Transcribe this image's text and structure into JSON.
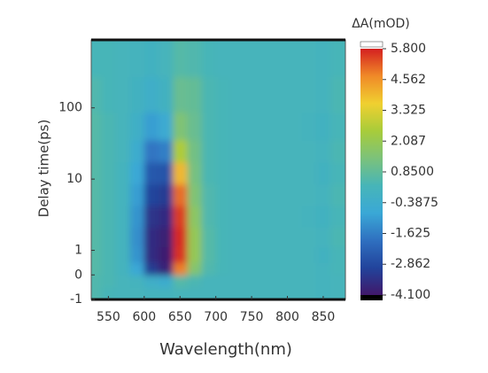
{
  "chart_data": {
    "type": "heatmap",
    "xlabel": "Wavelength(nm)",
    "ylabel": "Delay time(ps)",
    "colorbar_title": "ΔA(mOD)",
    "x": [
      530,
      550,
      570,
      590,
      610,
      630,
      650,
      670,
      690,
      710,
      730,
      750,
      770,
      790,
      810,
      830,
      850,
      870
    ],
    "y": [
      -0.75,
      -0.25,
      0.25,
      0.75,
      1.5,
      3,
      6,
      12,
      25,
      50,
      150,
      500
    ],
    "z": [
      [
        0.5,
        0.3,
        0.2,
        0.2,
        0.1,
        0.1,
        0.2,
        0.2,
        0.2,
        0.2,
        0.2,
        0.2,
        0.2,
        0.2,
        0.2,
        0.2,
        0.1,
        0.2
      ],
      [
        0.5,
        0.4,
        0.2,
        0.1,
        -0.3,
        -0.5,
        0.6,
        0.4,
        0.2,
        0.2,
        0.2,
        0.2,
        0.2,
        0.2,
        0.2,
        0.2,
        0.1,
        0.2
      ],
      [
        0.6,
        0.4,
        0.1,
        -0.8,
        -3.2,
        -3.8,
        4.8,
        1.6,
        0.5,
        0.3,
        0.2,
        0.2,
        0.2,
        0.2,
        0.2,
        0.2,
        0.1,
        0.3
      ],
      [
        0.6,
        0.4,
        0.1,
        -1.2,
        -3.6,
        -4.0,
        5.6,
        2.0,
        0.6,
        0.3,
        0.2,
        0.2,
        0.2,
        0.2,
        0.2,
        0.2,
        0.0,
        0.3
      ],
      [
        0.6,
        0.4,
        0.1,
        -1.3,
        -3.6,
        -3.9,
        5.7,
        2.0,
        0.6,
        0.3,
        0.2,
        0.2,
        0.2,
        0.2,
        0.2,
        0.2,
        0.1,
        0.4
      ],
      [
        0.6,
        0.4,
        0.1,
        -1.2,
        -3.4,
        -3.6,
        5.5,
        1.8,
        0.5,
        0.3,
        0.2,
        0.2,
        0.2,
        0.2,
        0.2,
        0.1,
        0.0,
        0.3
      ],
      [
        0.6,
        0.4,
        0.1,
        -1.0,
        -3.0,
        -3.2,
        5.0,
        1.5,
        0.5,
        0.3,
        0.2,
        0.2,
        0.2,
        0.2,
        0.2,
        0.2,
        0.1,
        0.4
      ],
      [
        0.6,
        0.4,
        0.1,
        -0.8,
        -2.5,
        -2.6,
        4.0,
        1.3,
        0.4,
        0.3,
        0.2,
        0.2,
        0.2,
        0.2,
        0.2,
        0.2,
        0.0,
        0.3
      ],
      [
        0.6,
        0.4,
        0.2,
        -0.5,
        -1.8,
        -1.6,
        2.6,
        1.2,
        0.4,
        0.3,
        0.2,
        0.2,
        0.2,
        0.2,
        0.2,
        0.2,
        0.1,
        0.4
      ],
      [
        0.6,
        0.4,
        0.2,
        -0.2,
        -1.0,
        -0.6,
        1.5,
        1.0,
        0.4,
        0.3,
        0.2,
        0.2,
        0.2,
        0.2,
        0.2,
        0.1,
        0.0,
        0.3
      ],
      [
        0.5,
        0.3,
        0.2,
        0.0,
        -0.3,
        0.0,
        1.0,
        0.9,
        0.4,
        0.3,
        0.2,
        0.2,
        0.2,
        0.2,
        0.2,
        0.2,
        0.1,
        0.4
      ],
      [
        0.3,
        0.3,
        0.2,
        0.1,
        0.0,
        0.2,
        0.6,
        0.5,
        0.3,
        0.2,
        0.2,
        0.2,
        0.2,
        0.2,
        0.2,
        0.2,
        0.1,
        0.3
      ]
    ],
    "xlim": [
      526,
      881
    ],
    "xticks": [
      550,
      600,
      650,
      700,
      750,
      800,
      850
    ],
    "yscale": "symlog",
    "linthresh": 1,
    "ylim": [
      -1,
      900
    ],
    "yticks": [
      -1,
      0,
      1,
      10,
      100
    ],
    "clim": [
      -4.1,
      5.8
    ],
    "colormap": [
      "#40186a",
      "#22449c",
      "#2f70c0",
      "#3aa8d6",
      "#47b5b8",
      "#7cc27a",
      "#a8cc3a",
      "#f0d030",
      "#f08a28",
      "#d42020"
    ],
    "cticks": [
      {
        "value": 5.8,
        "label": "5.800"
      },
      {
        "value": 4.562,
        "label": "4.562"
      },
      {
        "value": 3.325,
        "label": "3.325"
      },
      {
        "value": 2.087,
        "label": "2.087"
      },
      {
        "value": 0.85,
        "label": "0.8500"
      },
      {
        "value": -0.3875,
        "label": "-0.3875"
      },
      {
        "value": -1.625,
        "label": "-1.625"
      },
      {
        "value": -2.862,
        "label": "-2.862"
      },
      {
        "value": -4.1,
        "label": "-4.100"
      }
    ]
  }
}
